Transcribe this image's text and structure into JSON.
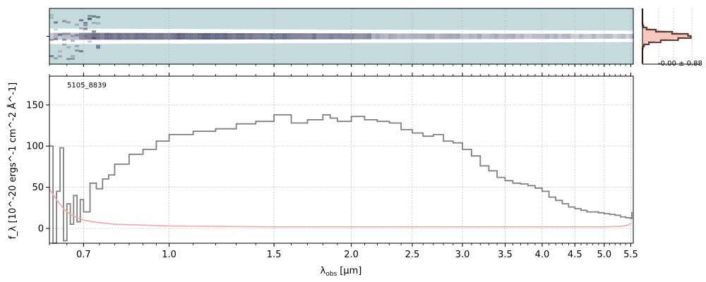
{
  "chart_data": [
    {
      "id": "spectrum-2d",
      "type": "heatmap",
      "colors": {
        "background": "#c5dada",
        "trace": "#3a3f60",
        "light": "#ffffff"
      }
    },
    {
      "id": "spectrum-1d",
      "type": "line",
      "annotation": "5105_8839",
      "xlabel_main": "λ",
      "xlabel_sub": "obs",
      "xlabel_unit": "[μm]",
      "ylabel": "f_λ [10^-20 ergs^-1 cm^-2 Å^-1]",
      "xlim": [
        0.6,
        5.55
      ],
      "ylim": [
        -18,
        185
      ],
      "xscale": "arcsinh",
      "xticks": [
        0.7,
        1.0,
        1.5,
        2.0,
        2.5,
        3.0,
        3.5,
        4.0,
        4.5,
        5.0,
        5.5
      ],
      "xtick_labels": [
        "0.7",
        "1.0",
        "1.5",
        "2.0",
        "2.5",
        "3.0",
        "3.5",
        "4.0",
        "4.5",
        "5.0",
        "5.5"
      ],
      "yticks": [
        0,
        50,
        100,
        150
      ],
      "ytick_labels": [
        "0",
        "50",
        "100",
        "150"
      ],
      "grid": true,
      "series": [
        {
          "role": "flux",
          "color": "#808080",
          "x": [
            0.6,
            0.61,
            0.62,
            0.63,
            0.64,
            0.65,
            0.66,
            0.67,
            0.68,
            0.69,
            0.7,
            0.72,
            0.74,
            0.76,
            0.78,
            0.8,
            0.85,
            0.9,
            0.95,
            1.0,
            1.1,
            1.2,
            1.3,
            1.4,
            1.5,
            1.6,
            1.7,
            1.8,
            1.85,
            1.9,
            2.0,
            2.1,
            2.2,
            2.3,
            2.4,
            2.5,
            2.6,
            2.7,
            2.8,
            2.9,
            3.0,
            3.1,
            3.2,
            3.3,
            3.4,
            3.5,
            3.6,
            3.7,
            3.8,
            3.9,
            4.0,
            4.1,
            4.2,
            4.3,
            4.4,
            4.5,
            4.6,
            4.7,
            4.8,
            4.9,
            5.0,
            5.1,
            5.2,
            5.3,
            5.4,
            5.5,
            5.52
          ],
          "y": [
            100,
            -20,
            45,
            98,
            -15,
            30,
            5,
            40,
            8,
            35,
            20,
            55,
            48,
            60,
            65,
            78,
            90,
            96,
            106,
            114,
            118,
            121,
            127,
            130,
            138,
            128,
            132,
            138,
            134,
            130,
            136,
            132,
            130,
            128,
            120,
            116,
            112,
            114,
            106,
            104,
            96,
            88,
            76,
            70,
            62,
            58,
            55,
            54,
            52,
            49,
            45,
            38,
            34,
            30,
            26,
            24,
            22,
            20,
            20,
            19,
            18,
            17,
            16,
            14,
            13,
            12,
            20
          ]
        },
        {
          "role": "error",
          "color": "#f4a6a6",
          "x": [
            0.6,
            0.62,
            0.64,
            0.66,
            0.68,
            0.7,
            0.75,
            0.8,
            0.9,
            1.0,
            1.2,
            1.5,
            2.0,
            2.5,
            3.0,
            3.5,
            4.0,
            4.5,
            5.0,
            5.3,
            5.45,
            5.52
          ],
          "y": [
            48,
            35,
            24,
            17,
            13,
            10,
            7,
            5,
            4,
            3,
            2.5,
            2,
            2,
            2,
            2,
            2,
            2,
            2,
            2,
            2.5,
            4,
            7
          ]
        }
      ]
    },
    {
      "id": "profile-panel",
      "type": "line",
      "annotation": "-0.00 ± 0.88",
      "color": "#5a3a33",
      "fill": "#f6c8bc"
    }
  ]
}
